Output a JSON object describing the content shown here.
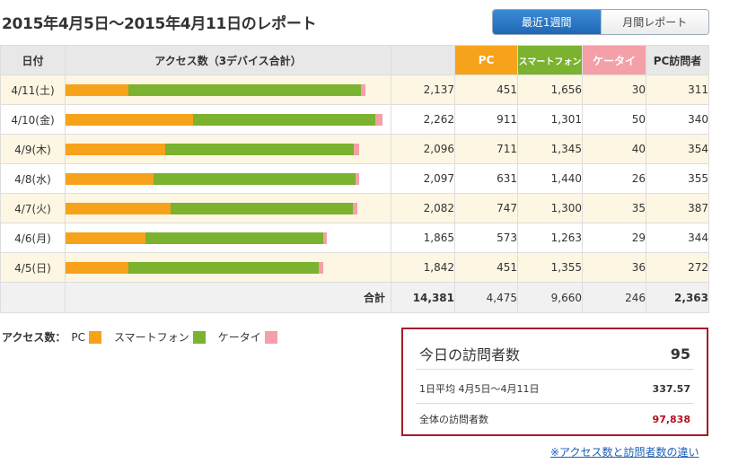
{
  "title": "2015年4月5日〜2015年4月11日のレポート",
  "tabs": [
    {
      "label": "最近1週間",
      "active": true
    },
    {
      "label": "月間レポート",
      "active": false
    }
  ],
  "table": {
    "headers": {
      "date": "日付",
      "access": "アクセス数（3デバイス合計）",
      "pc": "PC",
      "smartphone": "スマートフォン",
      "keitai": "ケータイ",
      "pc_visitors": "PC訪問者"
    },
    "rows": [
      {
        "date": "4/11(土)",
        "total": "2,137",
        "pc": "451",
        "sp": "1,656",
        "kt": "30",
        "visitors": "311"
      },
      {
        "date": "4/10(金)",
        "total": "2,262",
        "pc": "911",
        "sp": "1,301",
        "kt": "50",
        "visitors": "340"
      },
      {
        "date": "4/9(木)",
        "total": "2,096",
        "pc": "711",
        "sp": "1,345",
        "kt": "40",
        "visitors": "354"
      },
      {
        "date": "4/8(水)",
        "total": "2,097",
        "pc": "631",
        "sp": "1,440",
        "kt": "26",
        "visitors": "355"
      },
      {
        "date": "4/7(火)",
        "total": "2,082",
        "pc": "747",
        "sp": "1,300",
        "kt": "35",
        "visitors": "387"
      },
      {
        "date": "4/6(月)",
        "total": "1,865",
        "pc": "573",
        "sp": "1,263",
        "kt": "29",
        "visitors": "344"
      },
      {
        "date": "4/5(日)",
        "total": "1,842",
        "pc": "451",
        "sp": "1,355",
        "kt": "36",
        "visitors": "272"
      }
    ],
    "totals": {
      "label": "合計",
      "total": "14,381",
      "pc": "4,475",
      "sp": "9,660",
      "kt": "246",
      "visitors": "2,363"
    }
  },
  "legend": {
    "title": "アクセス数：",
    "items": [
      {
        "label": "PC",
        "color": "#f7a21b"
      },
      {
        "label": "スマートフォン",
        "color": "#7bb22f"
      },
      {
        "label": "ケータイ",
        "color": "#f4a0a8"
      }
    ]
  },
  "visitors_box": {
    "today_label": "今日の訪問者数",
    "today_value": "95",
    "avg_label": "1日平均 4月5日〜4月11日",
    "avg_value": "337.57",
    "total_label": "全体の訪問者数",
    "total_value": "97,838"
  },
  "diff_link": "※アクセス数と訪問者数の違い",
  "colors": {
    "pc": "#f7a21b",
    "smartphone": "#7bb22f",
    "keitai": "#f4a0a8",
    "accent": "#a51c2a",
    "link": "#1a5fb4"
  }
}
